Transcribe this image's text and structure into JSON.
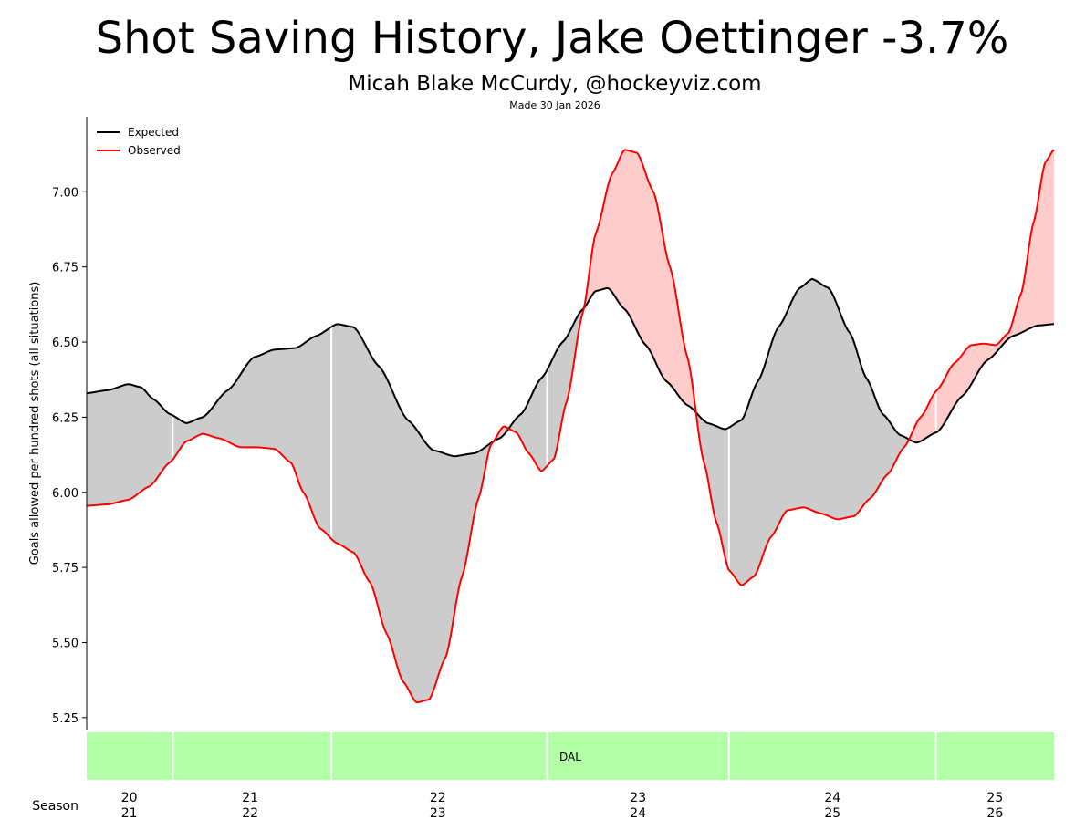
{
  "header": {
    "title": "Shot Saving History, Jake Oettinger -3.7%",
    "subtitle": "Micah Blake McCurdy, @hockeyviz.com",
    "made": "Made 30 Jan 2026"
  },
  "colors": {
    "expected": "#000000",
    "observed": "#ff0000",
    "fill_better": "#cccccc",
    "fill_worse": "#ffcccc",
    "team_band": "#b3ffa8",
    "separator": "#ffffff"
  },
  "chart_data": {
    "type": "line",
    "ylabel": "Goals allowed per hundred shots (all situations)",
    "ylim": [
      5.21,
      7.25
    ],
    "yticks": [
      5.25,
      5.5,
      5.75,
      6.0,
      6.25,
      6.5,
      6.75,
      7.0
    ],
    "ytick_labels": [
      "5.25",
      "5.50",
      "5.75",
      "6.00",
      "6.25",
      "6.50",
      "6.75",
      "7.00"
    ],
    "xlim": [
      0,
      100
    ],
    "series": [
      {
        "name": "Expected",
        "points": [
          [
            0,
            6.33
          ],
          [
            2.2,
            6.34
          ],
          [
            4.3,
            6.36
          ],
          [
            5.6,
            6.35
          ],
          [
            6.9,
            6.31
          ],
          [
            8.6,
            6.26
          ],
          [
            10.3,
            6.23
          ],
          [
            12.0,
            6.25
          ],
          [
            14.6,
            6.34
          ],
          [
            17.3,
            6.45
          ],
          [
            19.4,
            6.475
          ],
          [
            21.6,
            6.48
          ],
          [
            23.7,
            6.52
          ],
          [
            25.9,
            6.56
          ],
          [
            27.6,
            6.55
          ],
          [
            30.2,
            6.42
          ],
          [
            33.2,
            6.24
          ],
          [
            35.8,
            6.14
          ],
          [
            38.0,
            6.12
          ],
          [
            40.1,
            6.13
          ],
          [
            42.7,
            6.18
          ],
          [
            44.9,
            6.26
          ],
          [
            47.0,
            6.38
          ],
          [
            49.2,
            6.5
          ],
          [
            51.3,
            6.61
          ],
          [
            52.6,
            6.67
          ],
          [
            53.9,
            6.68
          ],
          [
            55.6,
            6.61
          ],
          [
            57.8,
            6.49
          ],
          [
            59.9,
            6.37
          ],
          [
            62.1,
            6.29
          ],
          [
            64.2,
            6.23
          ],
          [
            66.0,
            6.21
          ],
          [
            67.7,
            6.24
          ],
          [
            69.4,
            6.37
          ],
          [
            71.5,
            6.55
          ],
          [
            73.7,
            6.68
          ],
          [
            75.0,
            6.71
          ],
          [
            76.7,
            6.68
          ],
          [
            78.9,
            6.53
          ],
          [
            80.6,
            6.38
          ],
          [
            82.3,
            6.26
          ],
          [
            84.1,
            6.19
          ],
          [
            85.8,
            6.165
          ],
          [
            87.9,
            6.2
          ],
          [
            90.5,
            6.32
          ],
          [
            93.1,
            6.44
          ],
          [
            95.7,
            6.52
          ],
          [
            98.3,
            6.555
          ],
          [
            100,
            6.56
          ]
        ]
      },
      {
        "name": "Observed",
        "points": [
          [
            0,
            5.955
          ],
          [
            2.2,
            5.96
          ],
          [
            4.3,
            5.975
          ],
          [
            6.5,
            6.02
          ],
          [
            8.6,
            6.1
          ],
          [
            10.3,
            6.17
          ],
          [
            12.0,
            6.195
          ],
          [
            13.7,
            6.18
          ],
          [
            15.9,
            6.15
          ],
          [
            17.6,
            6.15
          ],
          [
            19.4,
            6.145
          ],
          [
            21.1,
            6.1
          ],
          [
            22.4,
            6.0
          ],
          [
            24.1,
            5.88
          ],
          [
            25.9,
            5.83
          ],
          [
            27.6,
            5.8
          ],
          [
            29.3,
            5.7
          ],
          [
            31.0,
            5.53
          ],
          [
            32.7,
            5.37
          ],
          [
            34.1,
            5.3
          ],
          [
            35.4,
            5.31
          ],
          [
            37.1,
            5.45
          ],
          [
            38.8,
            5.72
          ],
          [
            40.5,
            5.98
          ],
          [
            41.8,
            6.16
          ],
          [
            43.1,
            6.22
          ],
          [
            44.4,
            6.2
          ],
          [
            45.7,
            6.13
          ],
          [
            47.0,
            6.07
          ],
          [
            48.3,
            6.11
          ],
          [
            49.6,
            6.3
          ],
          [
            51.3,
            6.6
          ],
          [
            52.6,
            6.86
          ],
          [
            54.3,
            7.06
          ],
          [
            55.6,
            7.14
          ],
          [
            56.9,
            7.13
          ],
          [
            58.6,
            7.0
          ],
          [
            60.3,
            6.75
          ],
          [
            62.1,
            6.45
          ],
          [
            63.8,
            6.1
          ],
          [
            65.1,
            5.9
          ],
          [
            66.4,
            5.74
          ],
          [
            67.7,
            5.69
          ],
          [
            69.0,
            5.72
          ],
          [
            70.7,
            5.85
          ],
          [
            72.4,
            5.94
          ],
          [
            74.1,
            5.95
          ],
          [
            75.9,
            5.93
          ],
          [
            77.6,
            5.91
          ],
          [
            79.3,
            5.92
          ],
          [
            81.0,
            5.98
          ],
          [
            82.8,
            6.06
          ],
          [
            84.5,
            6.15
          ],
          [
            86.2,
            6.25
          ],
          [
            87.9,
            6.34
          ],
          [
            89.7,
            6.43
          ],
          [
            91.4,
            6.49
          ],
          [
            92.7,
            6.495
          ],
          [
            94.0,
            6.49
          ],
          [
            95.3,
            6.53
          ],
          [
            96.6,
            6.66
          ],
          [
            97.9,
            6.9
          ],
          [
            99.1,
            7.1
          ],
          [
            100,
            7.14
          ]
        ]
      }
    ],
    "legend": [
      "Expected",
      "Observed"
    ],
    "legend_position": "top-left",
    "season_separators": [
      8.9,
      25.3,
      47.6,
      66.4,
      87.8
    ],
    "team_band": {
      "label": "DAL"
    },
    "x_axis_label": "Season",
    "season_ticks": [
      {
        "x": 4.4,
        "top": "20",
        "bottom": "21"
      },
      {
        "x": 16.9,
        "top": "21",
        "bottom": "22"
      },
      {
        "x": 36.3,
        "top": "22",
        "bottom": "23"
      },
      {
        "x": 57.0,
        "top": "23",
        "bottom": "24"
      },
      {
        "x": 77.1,
        "top": "24",
        "bottom": "25"
      },
      {
        "x": 93.9,
        "top": "25",
        "bottom": "26"
      }
    ]
  }
}
